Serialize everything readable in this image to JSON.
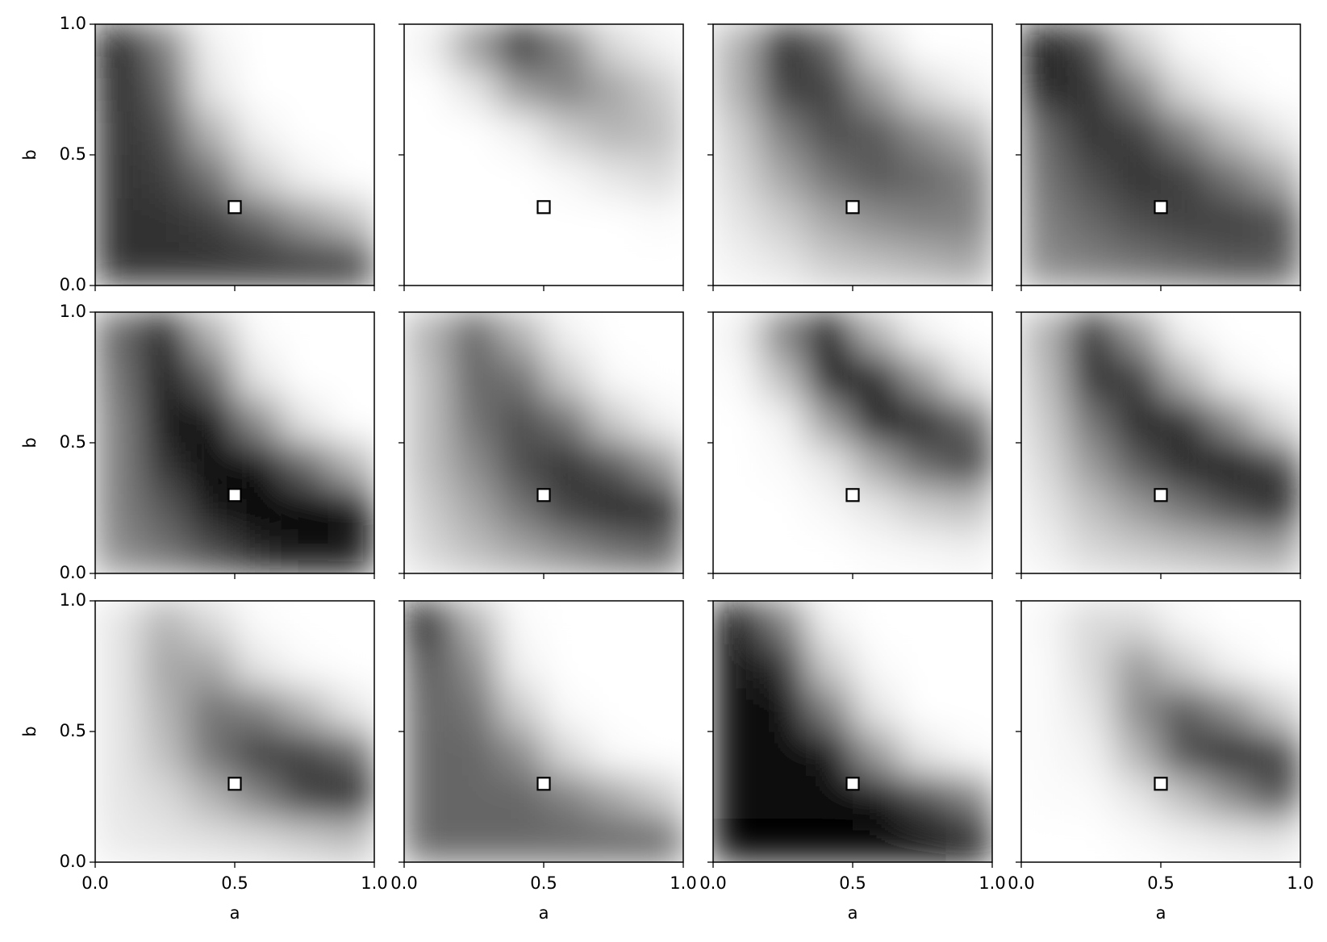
{
  "chart_data": [
    {
      "type": "heatmap",
      "xlim": [
        0,
        1
      ],
      "ylim": [
        0,
        1
      ],
      "xticks": [
        0,
        0.5,
        1
      ],
      "yticks": [
        {
          "value": 0,
          "label": "0.0"
        },
        {
          "value": 0.5,
          "label": "0.5"
        },
        {
          "value": 1,
          "label": "1.0"
        }
      ],
      "ylabel": "b",
      "z": [
        [
          0.9,
          0.5,
          0.05,
          0,
          0,
          0
        ],
        [
          0.85,
          0.6,
          0.1,
          0,
          0,
          0
        ],
        [
          0.8,
          0.7,
          0.3,
          0.05,
          0,
          0
        ],
        [
          0.8,
          0.75,
          0.55,
          0.2,
          0.05,
          0
        ],
        [
          0.8,
          0.8,
          0.75,
          0.6,
          0.4,
          0.25
        ],
        [
          0.8,
          0.8,
          0.8,
          0.8,
          0.8,
          0.8
        ]
      ],
      "marker": {
        "x": 0.5,
        "y": 0.3,
        "color": "#ffffff",
        "edgecolor": "#000000"
      }
    },
    {
      "type": "heatmap",
      "xlim": [
        0,
        1
      ],
      "ylim": [
        0,
        1
      ],
      "xticks": [
        0,
        0.5,
        1
      ],
      "yticks": [
        0,
        0.5,
        1
      ],
      "z": [
        [
          0.05,
          0.4,
          0.85,
          0.5,
          0.15,
          0.05
        ],
        [
          0,
          0.1,
          0.4,
          0.5,
          0.35,
          0.2
        ],
        [
          0,
          0,
          0.05,
          0.2,
          0.3,
          0.25
        ],
        [
          0,
          0,
          0,
          0.03,
          0.1,
          0.15
        ],
        [
          0,
          0,
          0,
          0,
          0,
          0.02
        ],
        [
          0,
          0,
          0,
          0,
          0,
          0
        ]
      ],
      "marker": {
        "x": 0.5,
        "y": 0.3,
        "color": "#ffffff",
        "edgecolor": "#000000"
      }
    },
    {
      "type": "heatmap",
      "xlim": [
        0,
        1
      ],
      "ylim": [
        0,
        1
      ],
      "xticks": [
        0,
        0.5,
        1
      ],
      "yticks": [
        0,
        0.5,
        1
      ],
      "z": [
        [
          0.3,
          0.85,
          0.6,
          0.15,
          0,
          0
        ],
        [
          0.3,
          0.75,
          0.75,
          0.4,
          0.15,
          0.05
        ],
        [
          0.2,
          0.5,
          0.7,
          0.65,
          0.45,
          0.3
        ],
        [
          0.15,
          0.35,
          0.55,
          0.65,
          0.6,
          0.5
        ],
        [
          0.1,
          0.2,
          0.35,
          0.45,
          0.5,
          0.5
        ],
        [
          0.05,
          0.1,
          0.2,
          0.25,
          0.3,
          0.35
        ]
      ],
      "marker": {
        "x": 0.5,
        "y": 0.3,
        "color": "#ffffff",
        "edgecolor": "#000000"
      }
    },
    {
      "type": "heatmap",
      "xlim": [
        0,
        1
      ],
      "ylim": [
        0,
        1
      ],
      "xticks": [
        0,
        0.5,
        1
      ],
      "yticks": [
        0,
        0.5,
        1
      ],
      "z": [
        [
          0.9,
          0.7,
          0.2,
          0.02,
          0,
          0
        ],
        [
          0.85,
          0.8,
          0.5,
          0.15,
          0.03,
          0
        ],
        [
          0.6,
          0.8,
          0.75,
          0.5,
          0.25,
          0.1
        ],
        [
          0.55,
          0.7,
          0.8,
          0.75,
          0.55,
          0.35
        ],
        [
          0.5,
          0.6,
          0.7,
          0.75,
          0.75,
          0.7
        ],
        [
          0.45,
          0.5,
          0.55,
          0.6,
          0.65,
          0.65
        ]
      ],
      "marker": {
        "x": 0.5,
        "y": 0.3,
        "color": "#ffffff",
        "edgecolor": "#000000"
      }
    },
    {
      "type": "heatmap",
      "xlim": [
        0,
        1
      ],
      "ylim": [
        0,
        1
      ],
      "xticks": [
        0,
        0.5,
        1
      ],
      "yticks": [
        {
          "value": 0,
          "label": "0.0"
        },
        {
          "value": 0.5,
          "label": "0.5"
        },
        {
          "value": 1,
          "label": "1.0"
        }
      ],
      "ylabel": "b",
      "z": [
        [
          0.6,
          0.85,
          0.3,
          0.02,
          0,
          0
        ],
        [
          0.55,
          0.9,
          0.6,
          0.1,
          0,
          0
        ],
        [
          0.5,
          0.9,
          0.9,
          0.45,
          0.1,
          0
        ],
        [
          0.5,
          0.8,
          1,
          0.9,
          0.6,
          0.3
        ],
        [
          0.5,
          0.65,
          0.9,
          1,
          1,
          0.95
        ],
        [
          0.45,
          0.55,
          0.7,
          0.85,
          0.9,
          0.9
        ]
      ],
      "marker": {
        "x": 0.5,
        "y": 0.3,
        "color": "#ffffff",
        "edgecolor": "#000000"
      }
    },
    {
      "type": "heatmap",
      "xlim": [
        0,
        1
      ],
      "ylim": [
        0,
        1
      ],
      "xticks": [
        0,
        0.5,
        1
      ],
      "yticks": [
        0,
        0.5,
        1
      ],
      "z": [
        [
          0.3,
          0.6,
          0.3,
          0.05,
          0,
          0
        ],
        [
          0.25,
          0.6,
          0.55,
          0.2,
          0.02,
          0
        ],
        [
          0.25,
          0.55,
          0.7,
          0.55,
          0.2,
          0.05
        ],
        [
          0.25,
          0.45,
          0.7,
          0.8,
          0.65,
          0.4
        ],
        [
          0.2,
          0.35,
          0.55,
          0.75,
          0.85,
          0.85
        ],
        [
          0.15,
          0.25,
          0.35,
          0.45,
          0.55,
          0.6
        ]
      ],
      "marker": {
        "x": 0.5,
        "y": 0.3,
        "color": "#ffffff",
        "edgecolor": "#000000"
      }
    },
    {
      "type": "heatmap",
      "xlim": [
        0,
        1
      ],
      "ylim": [
        0,
        1
      ],
      "xticks": [
        0,
        0.5,
        1
      ],
      "yticks": [
        0,
        0.5,
        1
      ],
      "z": [
        [
          0.05,
          0.5,
          0.9,
          0.3,
          0.05,
          0
        ],
        [
          0.02,
          0.25,
          0.9,
          0.85,
          0.4,
          0.1
        ],
        [
          0,
          0.05,
          0.4,
          0.9,
          0.85,
          0.6
        ],
        [
          0,
          0.02,
          0.1,
          0.35,
          0.6,
          0.75
        ],
        [
          0,
          0,
          0.03,
          0.1,
          0.2,
          0.25
        ],
        [
          0,
          0,
          0,
          0.02,
          0.03,
          0.05
        ]
      ],
      "marker": {
        "x": 0.5,
        "y": 0.3,
        "color": "#ffffff",
        "edgecolor": "#000000"
      }
    },
    {
      "type": "heatmap",
      "xlim": [
        0,
        1
      ],
      "ylim": [
        0,
        1
      ],
      "xticks": [
        0,
        0.5,
        1
      ],
      "yticks": [
        0,
        0.5,
        1
      ],
      "z": [
        [
          0.3,
          0.8,
          0.4,
          0.05,
          0,
          0
        ],
        [
          0.25,
          0.8,
          0.75,
          0.3,
          0.05,
          0
        ],
        [
          0.2,
          0.55,
          0.85,
          0.8,
          0.45,
          0.15
        ],
        [
          0.15,
          0.4,
          0.65,
          0.85,
          0.9,
          0.75
        ],
        [
          0.1,
          0.25,
          0.4,
          0.55,
          0.7,
          0.85
        ],
        [
          0.05,
          0.15,
          0.2,
          0.25,
          0.3,
          0.35
        ]
      ],
      "marker": {
        "x": 0.5,
        "y": 0.3,
        "color": "#ffffff",
        "edgecolor": "#000000"
      }
    },
    {
      "type": "heatmap",
      "xlim": [
        0,
        1
      ],
      "ylim": [
        0,
        1
      ],
      "xticks": [
        {
          "value": 0,
          "label": "0.0"
        },
        {
          "value": 0.5,
          "label": "0.5"
        },
        {
          "value": 1,
          "label": "1.0"
        }
      ],
      "yticks": [
        {
          "value": 0,
          "label": "0.0"
        },
        {
          "value": 0.5,
          "label": "0.5"
        },
        {
          "value": 1,
          "label": "1.0"
        }
      ],
      "xlabel": "a",
      "ylabel": "b",
      "z": [
        [
          0.1,
          0.3,
          0.15,
          0.02,
          0,
          0
        ],
        [
          0.1,
          0.35,
          0.35,
          0.1,
          0.02,
          0
        ],
        [
          0.1,
          0.3,
          0.55,
          0.5,
          0.3,
          0.1
        ],
        [
          0.1,
          0.25,
          0.55,
          0.75,
          0.75,
          0.6
        ],
        [
          0.1,
          0.15,
          0.3,
          0.5,
          0.75,
          0.85
        ],
        [
          0.08,
          0.1,
          0.12,
          0.15,
          0.2,
          0.25
        ]
      ],
      "marker": {
        "x": 0.5,
        "y": 0.3,
        "color": "#ffffff",
        "edgecolor": "#000000"
      }
    },
    {
      "type": "heatmap",
      "xlim": [
        0,
        1
      ],
      "ylim": [
        0,
        1
      ],
      "xticks": [
        {
          "value": 0,
          "label": "0.0"
        },
        {
          "value": 0.5,
          "label": "0.5"
        },
        {
          "value": 1,
          "label": "1.0"
        }
      ],
      "yticks": [
        0,
        0.5,
        1
      ],
      "xlabel": "a",
      "z": [
        [
          0.9,
          0.3,
          0.02,
          0,
          0,
          0
        ],
        [
          0.65,
          0.45,
          0.05,
          0,
          0,
          0
        ],
        [
          0.6,
          0.55,
          0.2,
          0.02,
          0,
          0
        ],
        [
          0.6,
          0.6,
          0.45,
          0.15,
          0.02,
          0
        ],
        [
          0.6,
          0.6,
          0.6,
          0.5,
          0.35,
          0.2
        ],
        [
          0.6,
          0.6,
          0.6,
          0.6,
          0.6,
          0.6
        ]
      ],
      "marker": {
        "x": 0.5,
        "y": 0.3,
        "color": "#ffffff",
        "edgecolor": "#000000"
      }
    },
    {
      "type": "heatmap",
      "xlim": [
        0,
        1
      ],
      "ylim": [
        0,
        1
      ],
      "xticks": [
        {
          "value": 0,
          "label": "0.0"
        },
        {
          "value": 0.5,
          "label": "0.5"
        },
        {
          "value": 1,
          "label": "1.0"
        }
      ],
      "yticks": [
        0,
        0.5,
        1
      ],
      "xlabel": "a",
      "z": [
        [
          0.95,
          0.5,
          0.05,
          0,
          0,
          0
        ],
        [
          0.95,
          0.8,
          0.2,
          0.02,
          0,
          0
        ],
        [
          0.95,
          0.95,
          0.5,
          0.1,
          0,
          0
        ],
        [
          0.95,
          0.95,
          0.9,
          0.4,
          0.1,
          0.02
        ],
        [
          0.95,
          0.95,
          0.95,
          0.9,
          0.7,
          0.5
        ],
        [
          1,
          1,
          1,
          1,
          1,
          0.95
        ]
      ],
      "marker": {
        "x": 0.5,
        "y": 0.3,
        "color": "#ffffff",
        "edgecolor": "#000000"
      }
    },
    {
      "type": "heatmap",
      "xlim": [
        0,
        1
      ],
      "ylim": [
        0,
        1
      ],
      "xticks": [
        {
          "value": 0,
          "label": "0.0"
        },
        {
          "value": 0.5,
          "label": "0.5"
        },
        {
          "value": 1,
          "label": "1.0"
        }
      ],
      "yticks": [
        0,
        0.5,
        1
      ],
      "xlabel": "a",
      "z": [
        [
          0.03,
          0.15,
          0.15,
          0.03,
          0,
          0
        ],
        [
          0.02,
          0.15,
          0.4,
          0.2,
          0.05,
          0
        ],
        [
          0.02,
          0.1,
          0.45,
          0.65,
          0.45,
          0.2
        ],
        [
          0.02,
          0.05,
          0.3,
          0.7,
          0.85,
          0.75
        ],
        [
          0.01,
          0.02,
          0.1,
          0.25,
          0.45,
          0.7
        ],
        [
          0,
          0,
          0.02,
          0.05,
          0.08,
          0.1
        ]
      ],
      "marker": {
        "x": 0.5,
        "y": 0.3,
        "color": "#ffffff",
        "edgecolor": "#000000"
      }
    }
  ]
}
